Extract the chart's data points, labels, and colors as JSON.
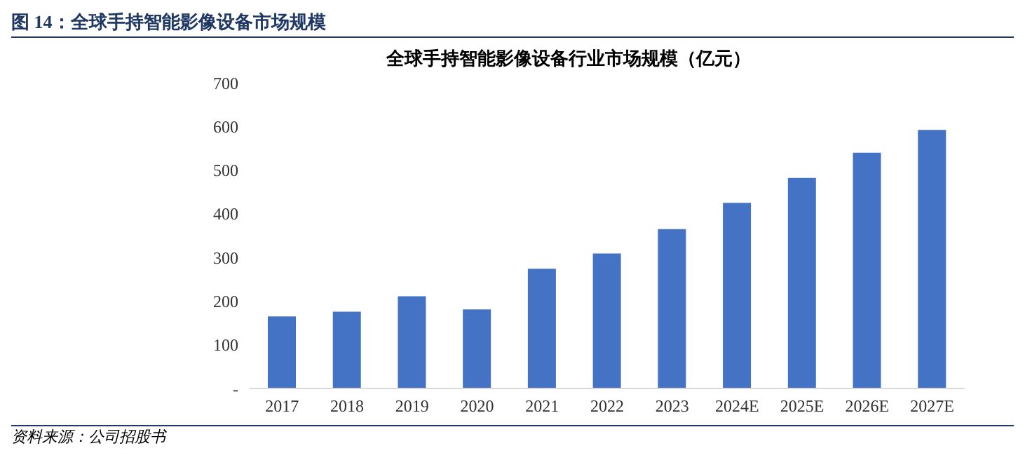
{
  "chart_data": {
    "type": "bar",
    "title": "图 14：全球手持智能影像设备市场规模",
    "subtitle": "全球手持智能影像设备行业市场规模（亿元）",
    "categories": [
      "2017",
      "2018",
      "2019",
      "2020",
      "2021",
      "2022",
      "2023",
      "2024E",
      "2025E",
      "2026E",
      "2027E"
    ],
    "values": [
      165,
      176,
      211,
      181,
      274,
      309,
      365,
      425,
      482,
      540,
      592
    ],
    "color": "#4472c4",
    "ylim": [
      0,
      700
    ],
    "yticks": [
      {
        "value": 0,
        "label": "-"
      },
      100,
      200,
      300,
      400,
      500,
      600,
      700
    ],
    "grid": false,
    "legend": false,
    "annotations": [
      "资料来源：公司招股书"
    ]
  }
}
